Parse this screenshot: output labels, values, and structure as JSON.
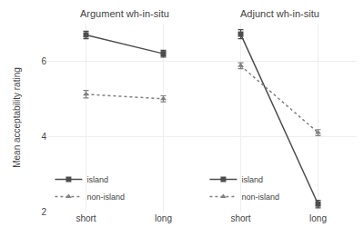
{
  "chart_data": [
    {
      "type": "line",
      "title": "Argument wh-in-situ",
      "categories": [
        "short",
        "long"
      ],
      "series": [
        {
          "name": "island",
          "color": "#4d4d4d",
          "line_style": "solid",
          "marker": "square",
          "values": [
            6.7,
            6.2
          ],
          "yerr": [
            0.1,
            0.09
          ]
        },
        {
          "name": "non-island",
          "color": "#808080",
          "line_style": "dotted",
          "marker": "triangle-up",
          "values": [
            5.12,
            5.0
          ],
          "yerr": [
            0.1,
            0.08
          ]
        }
      ],
      "ylabel": "Mean acceptability rating",
      "ylim": [
        2.0,
        7.0
      ],
      "yticks": [
        2,
        4,
        6
      ],
      "grid": true,
      "legend": "lower left"
    },
    {
      "type": "line",
      "title": "Adjunct wh-in-situ",
      "categories": [
        "short",
        "long"
      ],
      "series": [
        {
          "name": "island",
          "color": "#4d4d4d",
          "line_style": "solid",
          "marker": "square",
          "values": [
            6.72,
            2.2
          ],
          "yerr": [
            0.12,
            0.1
          ]
        },
        {
          "name": "non-island",
          "color": "#808080",
          "line_style": "dotted",
          "marker": "triangle-up",
          "values": [
            5.88,
            4.1
          ],
          "yerr": [
            0.08,
            0.08
          ]
        }
      ],
      "ylim": [
        2.0,
        7.0
      ],
      "yticks": [
        2,
        4,
        6
      ],
      "grid": true,
      "legend": "lower left",
      "tick_labels": "x"
    }
  ]
}
